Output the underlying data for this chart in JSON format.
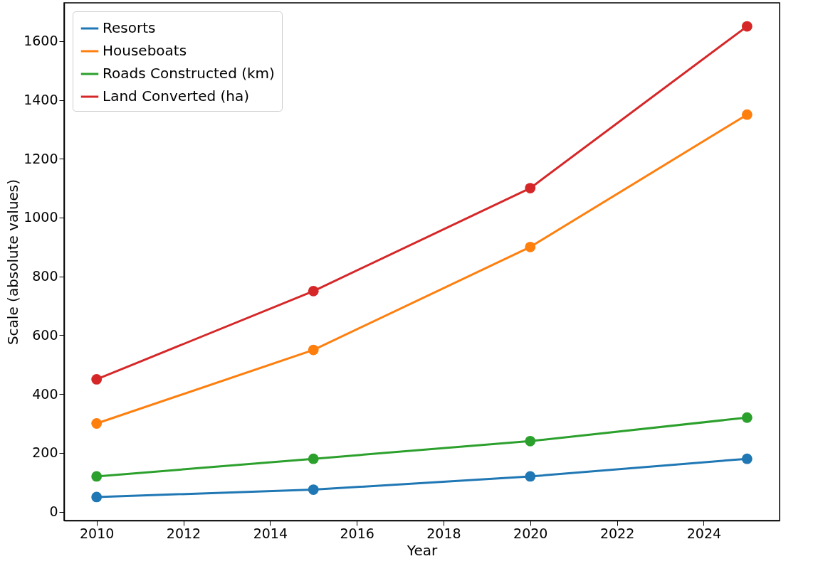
{
  "chart_data": {
    "type": "line",
    "xlabel": "Year",
    "ylabel": "Scale (absolute values)",
    "x": [
      2010,
      2015,
      2020,
      2025
    ],
    "series": [
      {
        "name": "Resorts",
        "color": "#1f77b4",
        "values": [
          50,
          75,
          120,
          180
        ]
      },
      {
        "name": "Houseboats",
        "color": "#ff7f0e",
        "values": [
          300,
          550,
          900,
          1350
        ]
      },
      {
        "name": "Roads Constructed (km)",
        "color": "#2ca02c",
        "values": [
          120,
          180,
          240,
          320
        ]
      },
      {
        "name": "Land Converted (ha)",
        "color": "#d62728",
        "values": [
          450,
          750,
          1100,
          1650
        ]
      }
    ],
    "xlim": [
      2009.25,
      2025.75
    ],
    "xticks": [
      2010,
      2012,
      2014,
      2016,
      2018,
      2020,
      2022,
      2024
    ],
    "ylim": [
      -30,
      1730
    ],
    "yticks": [
      0,
      200,
      400,
      600,
      800,
      1000,
      1200,
      1400,
      1600
    ],
    "grid": false,
    "legend": "top left",
    "marker": "circle",
    "line_style": "solid"
  }
}
